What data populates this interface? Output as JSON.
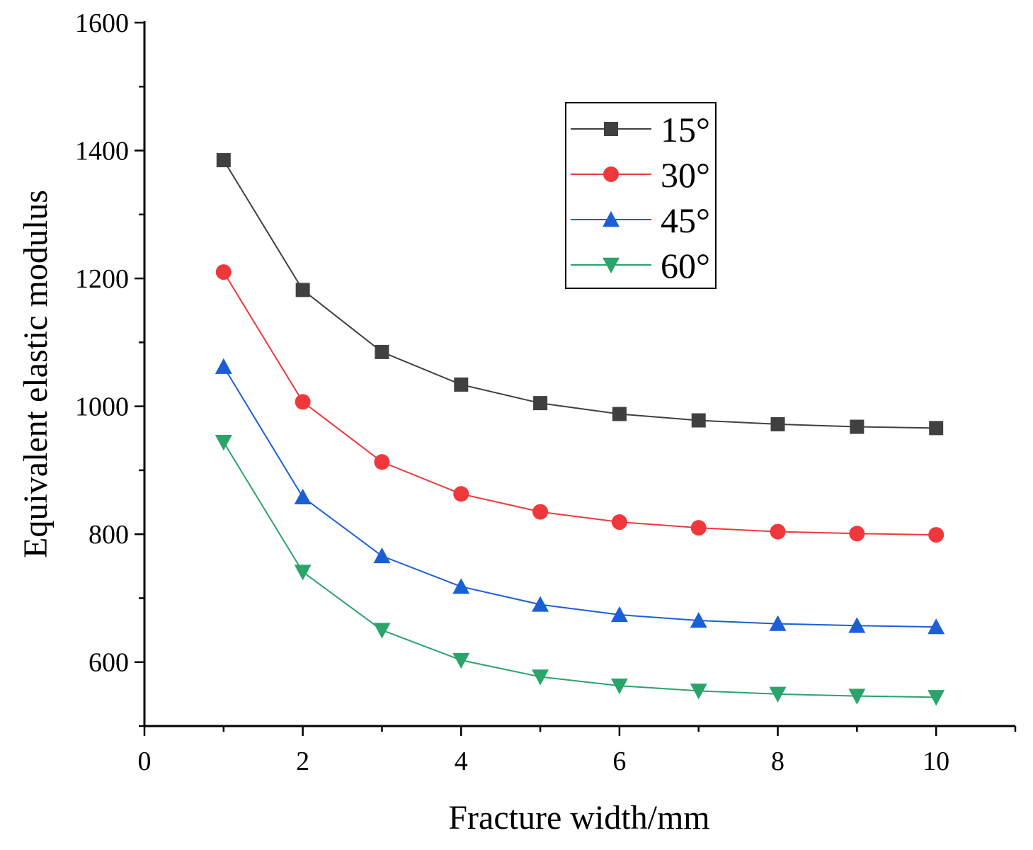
{
  "chart_data": {
    "type": "line",
    "title": "",
    "xlabel": "Fracture width/mm",
    "ylabel": "Equivalent elastic modulus",
    "xlim": [
      0,
      11
    ],
    "ylim": [
      500,
      1600
    ],
    "xticks": [
      0,
      2,
      4,
      6,
      8,
      10
    ],
    "yticks": [
      600,
      800,
      1000,
      1200,
      1400,
      1600
    ],
    "grid": false,
    "legend_position": "top-right",
    "x": [
      1,
      2,
      3,
      4,
      5,
      6,
      7,
      8,
      9,
      10
    ],
    "series": [
      {
        "name": "15°",
        "color": "#404040",
        "marker": "square",
        "values": [
          1385,
          1182,
          1085,
          1034,
          1005,
          988,
          978,
          972,
          968,
          966
        ]
      },
      {
        "name": "30°",
        "color": "#f0383c",
        "marker": "circle",
        "values": [
          1210,
          1007,
          913,
          863,
          835,
          819,
          810,
          804,
          801,
          799
        ]
      },
      {
        "name": "45°",
        "color": "#1a5fd6",
        "marker": "triangle-up",
        "values": [
          1062,
          858,
          766,
          718,
          690,
          674,
          665,
          660,
          657,
          655
        ]
      },
      {
        "name": "60°",
        "color": "#2aa46a",
        "marker": "triangle-down",
        "values": [
          944,
          741,
          650,
          603,
          577,
          563,
          555,
          550,
          547,
          545
        ]
      }
    ]
  }
}
